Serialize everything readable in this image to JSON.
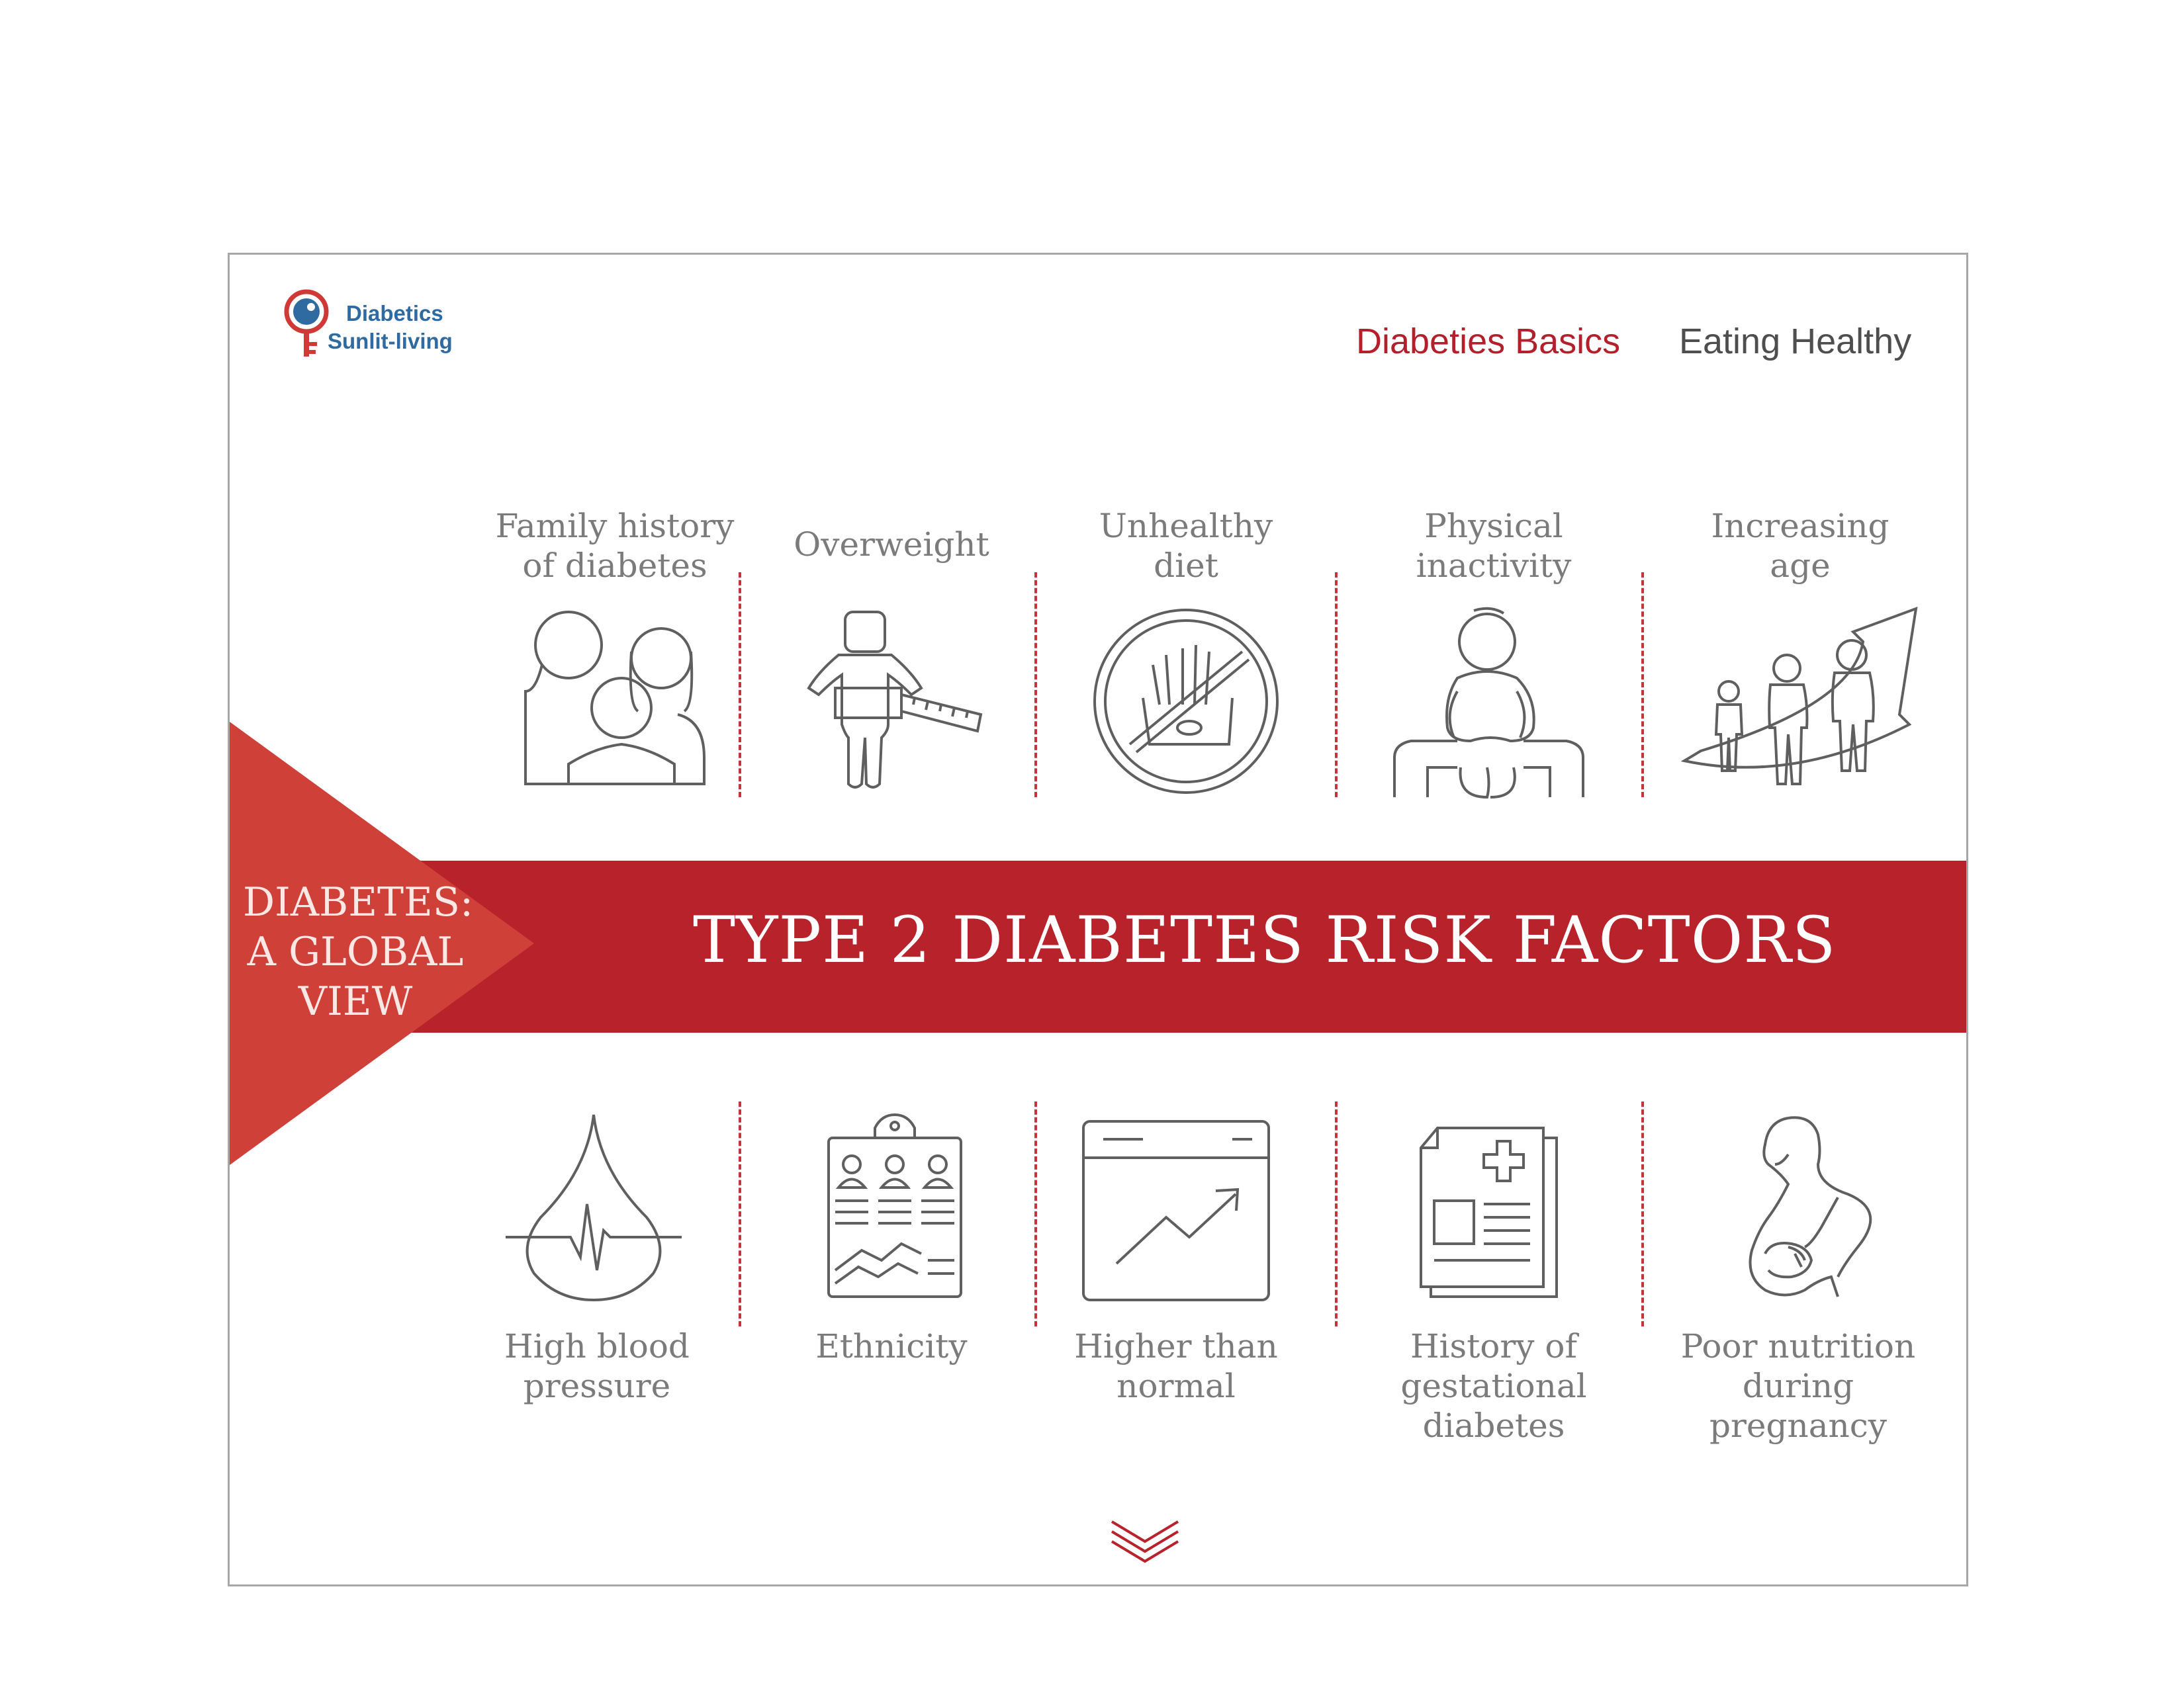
{
  "header": {
    "logo": {
      "line1": "Diabetics",
      "line2": "Sunlit-living",
      "icon": "magnifier-key-logo-icon"
    },
    "nav": [
      {
        "label": "Diabeties Basics",
        "active": true
      },
      {
        "label": "Eating Healthy",
        "active": false
      }
    ]
  },
  "sidebar_tag": {
    "line1": "DIABETES:",
    "line2": "A GLOBAL",
    "line3": "VIEW"
  },
  "headline": "TYPE 2 DIABETES RISK FACTORS",
  "factors_top": [
    {
      "line1": "Family history",
      "line2": "of diabetes",
      "icon": "family-icon"
    },
    {
      "line1": "Overweight",
      "line2": "",
      "icon": "measuring-tape-person-icon"
    },
    {
      "line1": "Unhealthy",
      "line2": "diet",
      "icon": "no-fast-food-icon"
    },
    {
      "line1": "Physical",
      "line2": "inactivity",
      "icon": "sitting-person-icon"
    },
    {
      "line1": "Increasing",
      "line2": "age",
      "icon": "aging-people-arrow-icon"
    }
  ],
  "factors_bottom": [
    {
      "line1": "High blood",
      "line2": "pressure",
      "line3": "",
      "icon": "blood-drop-pulse-icon"
    },
    {
      "line1": "Ethnicity",
      "line2": "",
      "line3": "",
      "icon": "clipboard-profiles-icon"
    },
    {
      "line1": "Higher than",
      "line2": "normal",
      "line3": "",
      "icon": "rising-chart-window-icon"
    },
    {
      "line1": "History of",
      "line2": "gestational",
      "line3": "diabetes",
      "icon": "medical-record-icon"
    },
    {
      "line1": "Poor nutrition",
      "line2": "during",
      "line3": "pregnancy",
      "icon": "pregnant-woman-icon"
    }
  ],
  "colors": {
    "accent": "#b7222b",
    "triangle": "#cf4039",
    "nav_active": "#b41f2c",
    "text": "#7b7b7b",
    "logo_blue": "#2f6aa0"
  },
  "scroll_hint": {
    "icon": "chevron-down-icon"
  }
}
